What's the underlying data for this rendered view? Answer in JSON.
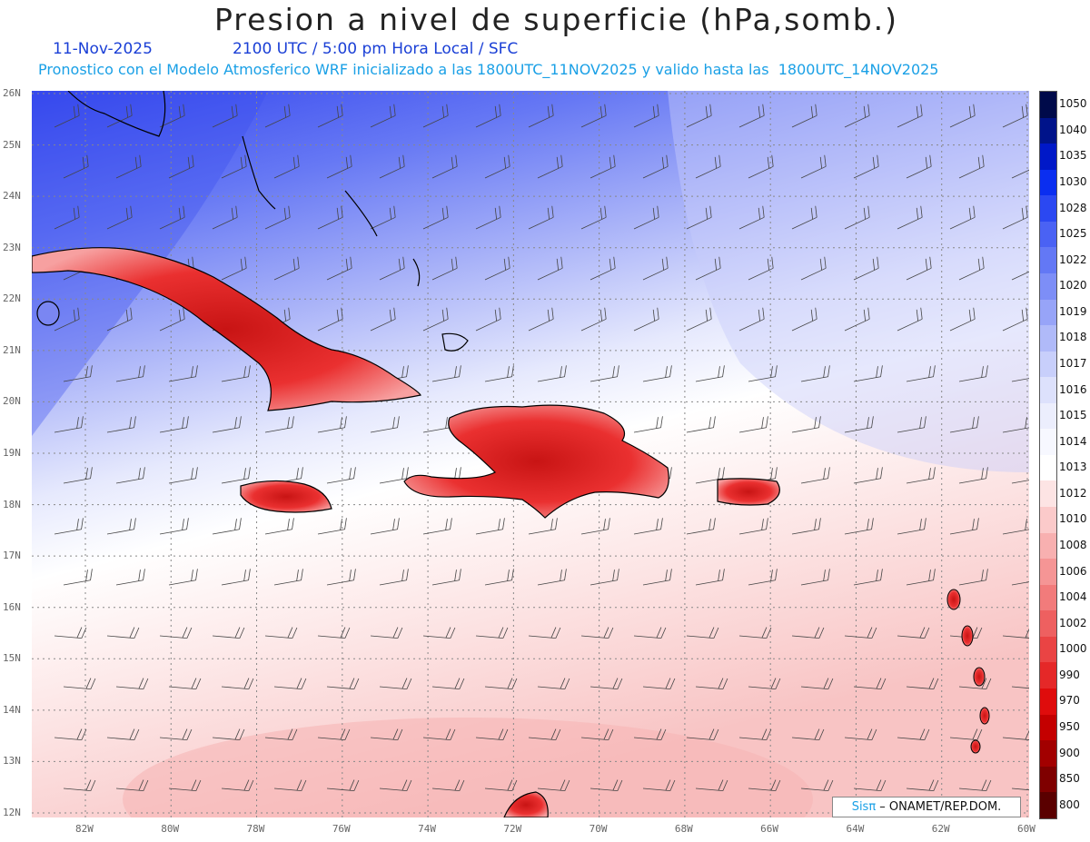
{
  "header": {
    "title": "Presion a nivel de superficie (hPa,somb.)",
    "date": "11-Nov-2025",
    "time_info": "2100 UTC / 5:00 pm Hora Local / SFC",
    "forecast_info": "Pronostico con el Modelo Atmosferico WRF inicializado a las 1800UTC_11NOV2025 y valido hasta las  1800UTC_14NOV2025"
  },
  "map": {
    "lat_labels": [
      "26N",
      "25N",
      "24N",
      "23N",
      "22N",
      "21N",
      "20N",
      "19N",
      "18N",
      "17N",
      "16N",
      "15N",
      "14N",
      "13N",
      "12N"
    ],
    "lon_labels": [
      "82W",
      "80W",
      "78W",
      "76W",
      "74W",
      "72W",
      "70W",
      "68W",
      "66W",
      "64W",
      "62W",
      "60W"
    ]
  },
  "colorbar": {
    "labels": [
      "1050",
      "1040",
      "1035",
      "1030",
      "1028",
      "1025",
      "1022",
      "1020",
      "1019",
      "1018",
      "1017",
      "1016",
      "1015",
      "1014",
      "1013",
      "1012",
      "1010",
      "1008",
      "1006",
      "1004",
      "1002",
      "1000",
      "990",
      "970",
      "950",
      "900",
      "850",
      "800"
    ],
    "colors": [
      "#000a4a",
      "#00138a",
      "#0018c8",
      "#0a2ef0",
      "#2b48f2",
      "#4a62f4",
      "#6378f5",
      "#7d8ef7",
      "#97a4f8",
      "#b0baf9",
      "#c8cffb",
      "#dde1fc",
      "#eceefd",
      "#f7f8ff",
      "#ffffff",
      "#fde4e4",
      "#fbcaca",
      "#f8b0b0",
      "#f59595",
      "#f27b7b",
      "#ee6060",
      "#ea4444",
      "#e52828",
      "#df0c0c",
      "#c40000",
      "#a20000",
      "#7f0000",
      "#5a0000"
    ]
  },
  "credit": {
    "brand": "Sisπ",
    "text": " – ONAMET/REP.DOM."
  }
}
